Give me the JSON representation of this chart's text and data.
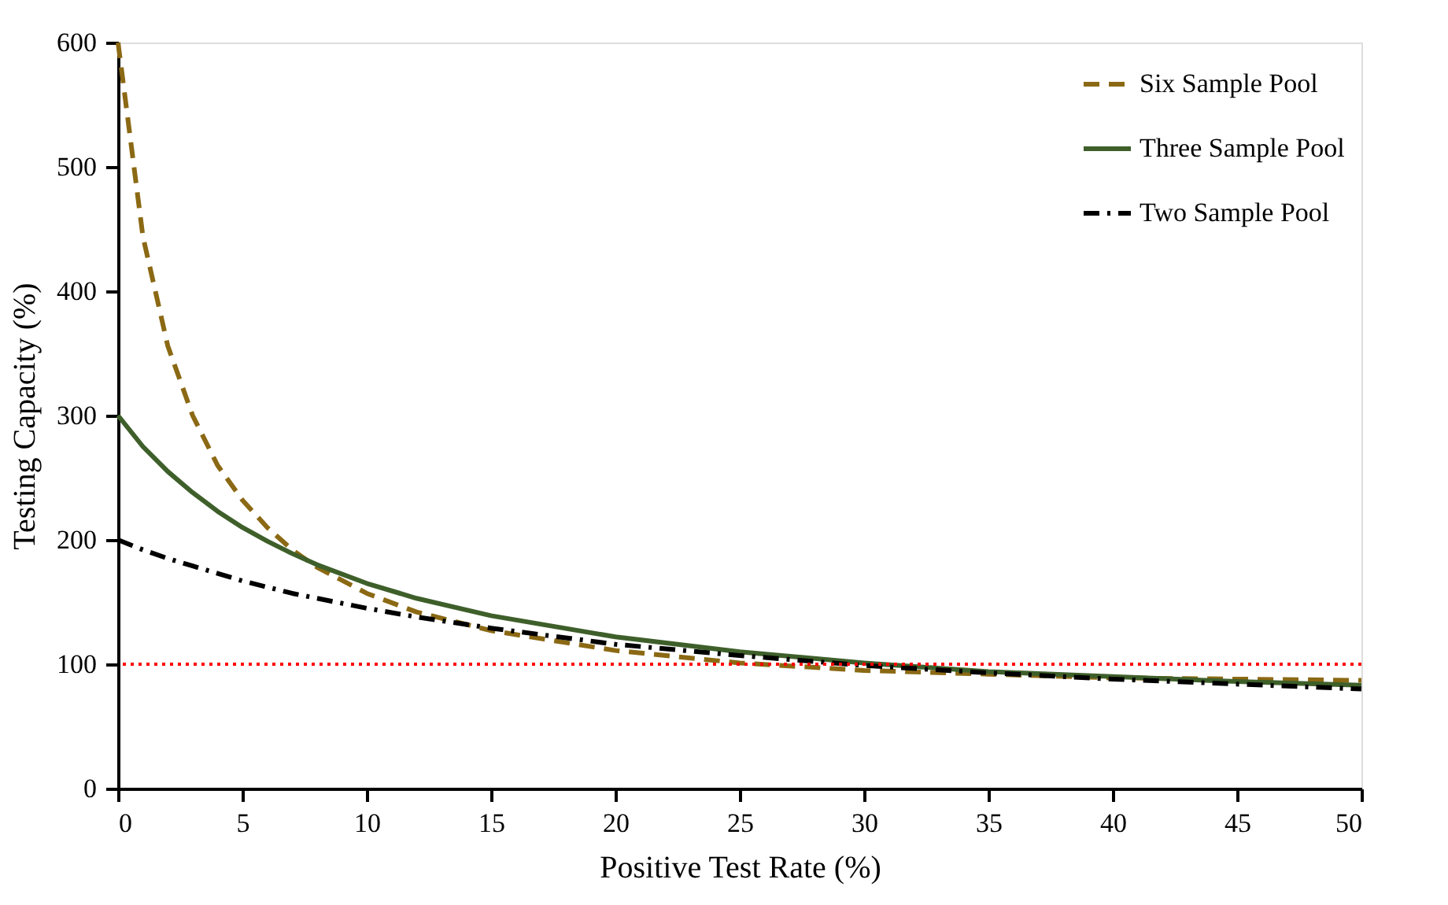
{
  "chart_data": {
    "type": "line",
    "xlabel": "Positive Test Rate (%)",
    "ylabel": "Testing Capacity (%)",
    "x": [
      0,
      1,
      2,
      3,
      4,
      5,
      6,
      7,
      8,
      10,
      12,
      15,
      20,
      25,
      30,
      35,
      40,
      45,
      50
    ],
    "series": [
      {
        "name": "Six Sample Pool",
        "color": "#8b6914",
        "line_style": "dashed",
        "values": [
          600,
          444,
          356,
          300,
          260,
          232,
          210,
          192,
          178,
          157,
          142,
          127,
          111,
          101,
          95,
          92,
          89,
          88,
          87
        ]
      },
      {
        "name": "Three Sample Pool",
        "color": "#3e5f2a",
        "line_style": "solid",
        "values": [
          300,
          275,
          255,
          238,
          223,
          210,
          199,
          189,
          180,
          165,
          153,
          139,
          122,
          110,
          101,
          94,
          90,
          86,
          83
        ]
      },
      {
        "name": "Two Sample Pool",
        "color": "#000000",
        "line_style": "dashdot",
        "values": [
          200,
          192,
          185,
          179,
          173,
          167,
          162,
          157,
          153,
          145,
          138,
          129,
          116,
          107,
          99,
          93,
          88,
          84,
          80
        ]
      }
    ],
    "xlim": [
      0,
      50
    ],
    "xticks": [
      0,
      5,
      10,
      15,
      20,
      25,
      30,
      35,
      40,
      45,
      50
    ],
    "ylim": [
      0,
      600
    ],
    "yticks": [
      0,
      100,
      200,
      300,
      400,
      500,
      600
    ],
    "ref_lines": [
      {
        "axis": "y",
        "value": 100,
        "color": "#ff0000",
        "line_style": "dotted"
      }
    ],
    "grid": false,
    "legend": "top right",
    "marker": "none"
  }
}
